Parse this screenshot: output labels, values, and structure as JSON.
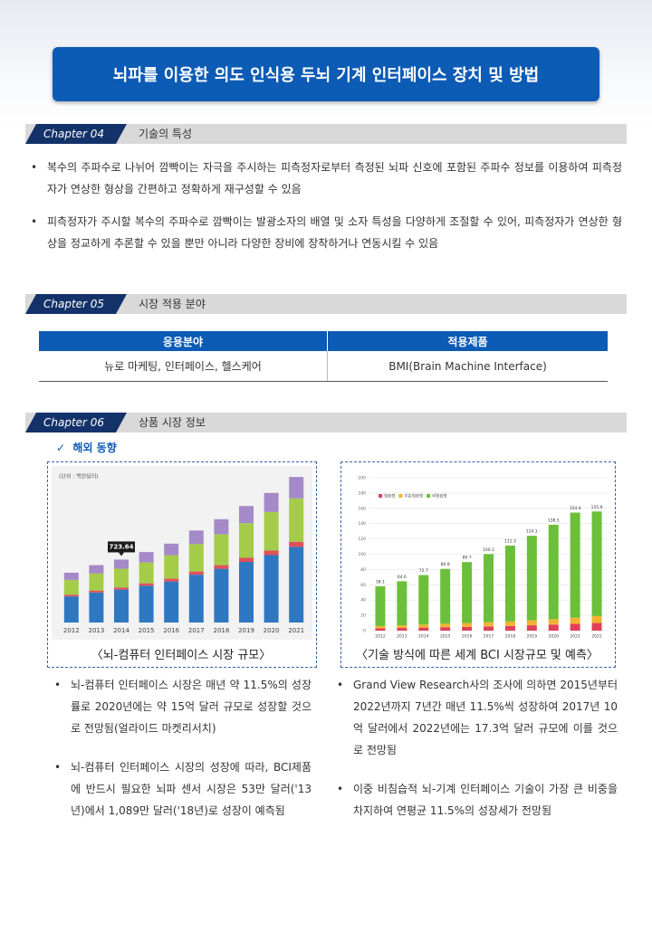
{
  "header": {
    "title": "뇌파를 이용한 의도 인식용 두뇌 기계 인터페이스 장치 및 방법"
  },
  "sections": [
    {
      "chapter": "Chapter 04",
      "title": "기술의 특성",
      "bullets": [
        "복수의 주파수로 나뉘어 깜빡이는 자극을 주시하는 피측정자로부터 측정된 뇌파 신호에 포함된 주파수 정보를 이용하여 피측정자가 연상한 형상을 간편하고 정확하게 재구성할 수 있음",
        "피측정자가 주시할 복수의 주파수로 깜빡이는 발광소자의 배열 및 소자 특성을 다양하게 조절할 수 있어, 피측정자가 연상한 형상을 정교하게 추론할 수 있을 뿐만 아니라 다양한 장비에 장착하거나 연동시킬 수 있음"
      ]
    },
    {
      "chapter": "Chapter 05",
      "title": "시장 적용 분야"
    },
    {
      "chapter": "Chapter 06",
      "title": "상품 시장 정보",
      "subtitle": "해외 동향"
    }
  ],
  "table": {
    "header": [
      "응용분야",
      "적용제품"
    ],
    "rows": [
      [
        "뉴로 마케팅, 인터페이스, 헬스케어",
        "BMI(Brain Machine Interface)"
      ]
    ]
  },
  "charts": [
    {
      "type": "bar",
      "stacked": true,
      "unit_label": "(단위 : 백만달러)",
      "caption": "〈뇌-컴퓨터 인터페이스 시장 규모〉",
      "categories": [
        "2012",
        "2013",
        "2014",
        "2015",
        "2016",
        "2017",
        "2018",
        "2019",
        "2020",
        "2021"
      ],
      "ylim": [
        0,
        1800
      ],
      "series": [
        {
          "color": "#2e78c2",
          "values": [
            300,
            345,
            378,
            423,
            472,
            550,
            618,
            697,
            775,
            870
          ]
        },
        {
          "color": "#e0505a",
          "values": [
            20,
            23,
            25,
            28,
            32,
            37,
            42,
            47,
            52,
            59
          ]
        },
        {
          "color": "#a5cc48",
          "values": [
            170,
            195,
            215,
            240,
            270,
            315,
            353,
            398,
            443,
            498
          ]
        },
        {
          "color": "#a48ac8",
          "values": [
            83,
            97,
            105.64,
            119,
            133,
            156,
            175,
            198,
            220,
            247
          ]
        }
      ],
      "annotation": {
        "category": "2014",
        "value": 723.64,
        "label": "723.64"
      }
    },
    {
      "type": "bar",
      "stacked": true,
      "caption": "〈기술 방식에 따른 세계 BCI 시장규모 및 예측〉",
      "categories": [
        "2012",
        "2013",
        "2014",
        "2015",
        "2016",
        "2017",
        "2018",
        "2019",
        "2020",
        "2021",
        "2022"
      ],
      "ylim": [
        0,
        200
      ],
      "yticks": [
        0,
        20,
        40,
        60,
        80,
        100,
        120,
        140,
        160,
        180,
        200
      ],
      "grid": true,
      "legend": "upper left",
      "series": [
        {
          "name": "침습형",
          "color": "#e0405a",
          "values": [
            3,
            3.5,
            4,
            4.5,
            5,
            5.5,
            6,
            7,
            8,
            9,
            10
          ]
        },
        {
          "name": "부분침습형",
          "color": "#f2b233",
          "values": [
            3,
            3.5,
            4,
            4.5,
            5,
            5.5,
            6,
            6.5,
            7,
            8,
            9
          ]
        },
        {
          "name": "비침습형",
          "color": "#6cbf3a",
          "values": [
            52.1,
            57.6,
            64.7,
            71.8,
            79.7,
            89.2,
            99.3,
            110.6,
            123.5,
            137.4,
            136.9
          ]
        }
      ],
      "totals": [
        58.1,
        64.6,
        72.7,
        80.8,
        89.7,
        100.2,
        111.3,
        124.1,
        138.5,
        154.4,
        155.9
      ]
    }
  ],
  "market_notes": {
    "left": [
      "뇌-컴퓨터 인터페이스 시장은 매년 약 11.5%의 성장률로 2020년에는 약 15억 달러 규모로 성장할 것으로 전망됨(얼라이드 마켓리서치)",
      "뇌-컴퓨터 인터페이스 시장의 성장에 따라, BCI제품에 반드시 필요한 뇌파 센서 시장은 53만 달러('13년)에서 1,089만 달러('18년)로 성장이 예측됨"
    ],
    "right": [
      "Grand View Research사의 조사에 의하면 2015년부터 2022년까지 7년간 매년 11.5%씩 성장하여 2017년 10억 달러에서 2022년에는 17.3억 달러 규모에 이를 것으로 전망됨",
      "이중 비침습적 뇌-기계 인터페이스 기술이 가장 큰 비중을 차지하여 연평균 11.5%의 성장세가 전망됨"
    ]
  }
}
